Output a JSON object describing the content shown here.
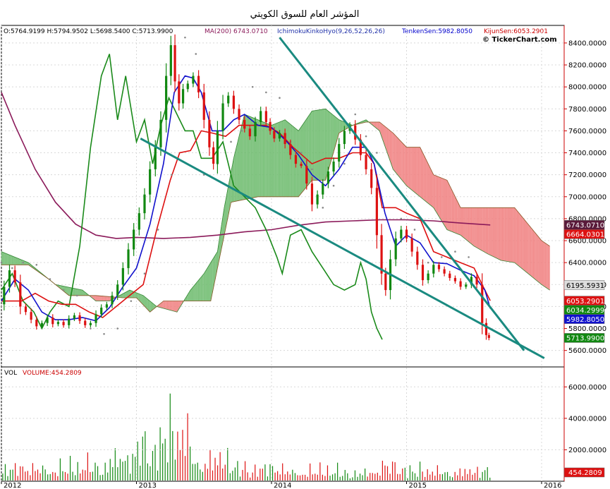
{
  "chart_data": {
    "type": "candlestick",
    "title": "المؤشر العام للسوق الكويتي",
    "watermark": "© TickerChart.com",
    "legend_ohlc": "O:5764.9199 H:5794.9502 L:5698.5400 C:5713.9900",
    "indicators": [
      {
        "label": "MA(200) 6743.0710",
        "color": "#8b1a5a"
      },
      {
        "label": "IchimokuKinkoHyo(9,26,52,26,26)",
        "color": "#2233aa"
      },
      {
        "label": "TenkenSen:5982.8050",
        "color": "#0000cc"
      },
      {
        "label": "KijunSen:6053.2901",
        "color": "#cc0000"
      }
    ],
    "price_axis": {
      "min": 5450,
      "max": 8560,
      "ticks": [
        5600,
        5800,
        6000,
        6200,
        6400,
        6600,
        6800,
        7000,
        7200,
        7400,
        7600,
        7800,
        8000,
        8200,
        8400
      ]
    },
    "time_axis": {
      "labels": [
        {
          "text": "2012",
          "t": 0
        },
        {
          "text": "2013",
          "t": 1
        },
        {
          "text": "2014",
          "t": 2
        },
        {
          "text": "2015",
          "t": 3
        },
        {
          "text": "2016",
          "t": 4
        }
      ]
    },
    "price_badges": [
      {
        "value": "6743.0710",
        "y": 6743.07,
        "bg": "#5a1a3a",
        "fg": "#ffffff"
      },
      {
        "value": "6664.0301",
        "y": 6664.03,
        "bg": "#dd1111",
        "fg": "#ffffff"
      },
      {
        "value": "6195.5931",
        "y": 6195.59,
        "bg": "#dddddd",
        "fg": "#000000"
      },
      {
        "value": "6053.2901",
        "y": 6053.29,
        "bg": "#dd1111",
        "fg": "#ffffff"
      },
      {
        "value": "6034.2999",
        "y": 6034.3,
        "bg": "#118811",
        "fg": "#ffffff"
      },
      {
        "value": "5982.8050",
        "y": 5982.81,
        "bg": "#1111cc",
        "fg": "#ffffff"
      },
      {
        "value": "5713.9900",
        "y": 5713.99,
        "bg": "#118811",
        "fg": "#ffffff"
      }
    ],
    "close": [
      [
        0.0,
        6020
      ],
      [
        0.04,
        6180
      ],
      [
        0.08,
        6330
      ],
      [
        0.12,
        6220
      ],
      [
        0.16,
        6000
      ],
      [
        0.2,
        5950
      ],
      [
        0.24,
        5880
      ],
      [
        0.28,
        5820
      ],
      [
        0.32,
        5850
      ],
      [
        0.36,
        5900
      ],
      [
        0.4,
        5840
      ],
      [
        0.44,
        5860
      ],
      [
        0.48,
        5830
      ],
      [
        0.52,
        5890
      ],
      [
        0.56,
        5920
      ],
      [
        0.6,
        5870
      ],
      [
        0.64,
        5830
      ],
      [
        0.68,
        5850
      ],
      [
        0.72,
        5930
      ],
      [
        0.76,
        5990
      ],
      [
        0.8,
        6020
      ],
      [
        0.84,
        6100
      ],
      [
        0.88,
        6200
      ],
      [
        0.92,
        6350
      ],
      [
        0.96,
        6520
      ],
      [
        1.0,
        6700
      ],
      [
        1.04,
        6850
      ],
      [
        1.08,
        7020
      ],
      [
        1.12,
        7250
      ],
      [
        1.16,
        7450
      ],
      [
        1.2,
        7700
      ],
      [
        1.24,
        8100
      ],
      [
        1.27,
        8380
      ],
      [
        1.3,
        8050
      ],
      [
        1.33,
        7850
      ],
      [
        1.36,
        7980
      ],
      [
        1.4,
        8030
      ],
      [
        1.44,
        8100
      ],
      [
        1.48,
        7950
      ],
      [
        1.52,
        7700
      ],
      [
        1.56,
        7450
      ],
      [
        1.58,
        7300
      ],
      [
        1.62,
        7600
      ],
      [
        1.66,
        7850
      ],
      [
        1.7,
        7920
      ],
      [
        1.74,
        7800
      ],
      [
        1.78,
        7700
      ],
      [
        1.82,
        7620
      ],
      [
        1.86,
        7550
      ],
      [
        1.9,
        7680
      ],
      [
        1.94,
        7780
      ],
      [
        1.98,
        7680
      ],
      [
        2.0,
        7600
      ],
      [
        2.04,
        7530
      ],
      [
        2.08,
        7580
      ],
      [
        2.12,
        7480
      ],
      [
        2.16,
        7380
      ],
      [
        2.2,
        7300
      ],
      [
        2.24,
        7280
      ],
      [
        2.28,
        7120
      ],
      [
        2.32,
        6930
      ],
      [
        2.36,
        7020
      ],
      [
        2.4,
        7120
      ],
      [
        2.44,
        7230
      ],
      [
        2.48,
        7320
      ],
      [
        2.52,
        7480
      ],
      [
        2.56,
        7600
      ],
      [
        2.6,
        7650
      ],
      [
        2.64,
        7520
      ],
      [
        2.68,
        7380
      ],
      [
        2.72,
        7250
      ],
      [
        2.76,
        7080
      ],
      [
        2.8,
        6650
      ],
      [
        2.83,
        6300
      ],
      [
        2.86,
        6150
      ],
      [
        2.9,
        6430
      ],
      [
        2.94,
        6620
      ],
      [
        2.98,
        6700
      ],
      [
        3.02,
        6620
      ],
      [
        3.06,
        6500
      ],
      [
        3.1,
        6380
      ],
      [
        3.14,
        6240
      ],
      [
        3.18,
        6300
      ],
      [
        3.22,
        6380
      ],
      [
        3.26,
        6340
      ],
      [
        3.3,
        6300
      ],
      [
        3.34,
        6260
      ],
      [
        3.38,
        6230
      ],
      [
        3.42,
        6180
      ],
      [
        3.46,
        6200
      ],
      [
        3.5,
        6270
      ],
      [
        3.54,
        6200
      ],
      [
        3.58,
        5850
      ],
      [
        3.6,
        5740
      ],
      [
        3.62,
        5713.99
      ]
    ],
    "ma200": [
      [
        0.0,
        7950
      ],
      [
        0.1,
        7650
      ],
      [
        0.25,
        7250
      ],
      [
        0.4,
        6950
      ],
      [
        0.55,
        6750
      ],
      [
        0.7,
        6650
      ],
      [
        0.85,
        6620
      ],
      [
        1.0,
        6630
      ],
      [
        1.2,
        6620
      ],
      [
        1.4,
        6630
      ],
      [
        1.6,
        6650
      ],
      [
        1.8,
        6680
      ],
      [
        2.0,
        6700
      ],
      [
        2.2,
        6740
      ],
      [
        2.4,
        6770
      ],
      [
        2.6,
        6780
      ],
      [
        2.8,
        6790
      ],
      [
        3.0,
        6790
      ],
      [
        3.2,
        6780
      ],
      [
        3.4,
        6760
      ],
      [
        3.62,
        6743
      ]
    ],
    "tenkan": [
      [
        0.0,
        6050
      ],
      [
        0.1,
        6250
      ],
      [
        0.2,
        6150
      ],
      [
        0.3,
        5950
      ],
      [
        0.4,
        5880
      ],
      [
        0.5,
        5880
      ],
      [
        0.6,
        5900
      ],
      [
        0.7,
        5870
      ],
      [
        0.8,
        5990
      ],
      [
        0.9,
        6180
      ],
      [
        1.0,
        6350
      ],
      [
        1.1,
        6750
      ],
      [
        1.2,
        7300
      ],
      [
        1.28,
        7950
      ],
      [
        1.36,
        8100
      ],
      [
        1.42,
        8080
      ],
      [
        1.48,
        7950
      ],
      [
        1.56,
        7600
      ],
      [
        1.64,
        7600
      ],
      [
        1.72,
        7700
      ],
      [
        1.8,
        7750
      ],
      [
        1.9,
        7650
      ],
      [
        2.0,
        7630
      ],
      [
        2.1,
        7520
      ],
      [
        2.2,
        7380
      ],
      [
        2.3,
        7200
      ],
      [
        2.4,
        7100
      ],
      [
        2.5,
        7250
      ],
      [
        2.6,
        7450
      ],
      [
        2.7,
        7450
      ],
      [
        2.76,
        7300
      ],
      [
        2.84,
        6850
      ],
      [
        2.92,
        6550
      ],
      [
        3.0,
        6650
      ],
      [
        3.1,
        6580
      ],
      [
        3.2,
        6400
      ],
      [
        3.3,
        6390
      ],
      [
        3.4,
        6330
      ],
      [
        3.5,
        6280
      ],
      [
        3.58,
        6150
      ],
      [
        3.62,
        5982.8
      ]
    ],
    "kijun": [
      [
        0.0,
        6050
      ],
      [
        0.15,
        6050
      ],
      [
        0.25,
        6120
      ],
      [
        0.35,
        6050
      ],
      [
        0.45,
        6020
      ],
      [
        0.55,
        6020
      ],
      [
        0.65,
        5950
      ],
      [
        0.75,
        5900
      ],
      [
        0.85,
        6000
      ],
      [
        0.95,
        6100
      ],
      [
        1.05,
        6200
      ],
      [
        1.15,
        6700
      ],
      [
        1.25,
        7150
      ],
      [
        1.32,
        7400
      ],
      [
        1.4,
        7420
      ],
      [
        1.48,
        7600
      ],
      [
        1.56,
        7580
      ],
      [
        1.66,
        7550
      ],
      [
        1.76,
        7650
      ],
      [
        1.86,
        7650
      ],
      [
        1.96,
        7650
      ],
      [
        2.06,
        7580
      ],
      [
        2.16,
        7450
      ],
      [
        2.3,
        7300
      ],
      [
        2.4,
        7350
      ],
      [
        2.5,
        7350
      ],
      [
        2.6,
        7400
      ],
      [
        2.7,
        7400
      ],
      [
        2.76,
        7300
      ],
      [
        2.82,
        6900
      ],
      [
        2.92,
        6900
      ],
      [
        3.0,
        6850
      ],
      [
        3.1,
        6800
      ],
      [
        3.2,
        6500
      ],
      [
        3.3,
        6450
      ],
      [
        3.4,
        6400
      ],
      [
        3.5,
        6350
      ],
      [
        3.56,
        6200
      ],
      [
        3.62,
        6053.3
      ]
    ],
    "chikou": [
      [
        0.0,
        6150
      ],
      [
        0.08,
        6300
      ],
      [
        0.16,
        6050
      ],
      [
        0.24,
        5950
      ],
      [
        0.3,
        5800
      ],
      [
        0.36,
        5950
      ],
      [
        0.42,
        6050
      ],
      [
        0.5,
        6000
      ],
      [
        0.58,
        6550
      ],
      [
        0.66,
        7450
      ],
      [
        0.74,
        8100
      ],
      [
        0.8,
        8300
      ],
      [
        0.86,
        7700
      ],
      [
        0.92,
        8100
      ],
      [
        1.0,
        7500
      ],
      [
        1.06,
        7700
      ],
      [
        1.12,
        7300
      ],
      [
        1.18,
        7650
      ],
      [
        1.24,
        7900
      ],
      [
        1.3,
        7750
      ],
      [
        1.36,
        7600
      ],
      [
        1.42,
        7600
      ],
      [
        1.48,
        7350
      ],
      [
        1.56,
        7350
      ],
      [
        1.64,
        7500
      ],
      [
        1.72,
        7100
      ],
      [
        1.8,
        7000
      ],
      [
        1.88,
        6900
      ],
      [
        1.96,
        6700
      ],
      [
        2.04,
        6450
      ],
      [
        2.08,
        6300
      ],
      [
        2.14,
        6650
      ],
      [
        2.22,
        6700
      ],
      [
        2.3,
        6500
      ],
      [
        2.38,
        6350
      ],
      [
        2.46,
        6200
      ],
      [
        2.54,
        6150
      ],
      [
        2.62,
        6200
      ],
      [
        2.66,
        6400
      ],
      [
        2.7,
        6250
      ],
      [
        2.74,
        5950
      ],
      [
        2.78,
        5800
      ],
      [
        2.82,
        5700
      ]
    ],
    "parabolic_sar": [
      [
        0.0,
        6400
      ],
      [
        0.08,
        6350
      ],
      [
        0.16,
        6400
      ],
      [
        0.26,
        6380
      ],
      [
        0.36,
        6250
      ],
      [
        0.46,
        6150
      ],
      [
        0.56,
        6100
      ],
      [
        0.66,
        5800
      ],
      [
        0.76,
        5750
      ],
      [
        0.86,
        5800
      ],
      [
        0.96,
        6050
      ],
      [
        1.06,
        6300
      ],
      [
        1.16,
        6700
      ],
      [
        1.26,
        7200
      ],
      [
        1.36,
        8450
      ],
      [
        1.44,
        8300
      ],
      [
        1.5,
        7200
      ],
      [
        1.6,
        7300
      ],
      [
        1.7,
        7500
      ],
      [
        1.78,
        7600
      ],
      [
        1.86,
        8000
      ],
      [
        1.96,
        7950
      ],
      [
        2.06,
        7900
      ],
      [
        2.14,
        7500
      ],
      [
        2.22,
        7400
      ],
      [
        2.3,
        7250
      ],
      [
        2.38,
        6900
      ],
      [
        2.46,
        7100
      ],
      [
        2.54,
        7300
      ],
      [
        2.62,
        7750
      ],
      [
        2.7,
        7550
      ],
      [
        2.78,
        7400
      ],
      [
        2.86,
        6300
      ],
      [
        2.96,
        6800
      ],
      [
        3.06,
        6700
      ],
      [
        3.16,
        6400
      ],
      [
        3.26,
        6450
      ],
      [
        3.36,
        6500
      ],
      [
        3.46,
        6450
      ],
      [
        3.56,
        6150
      ]
    ],
    "senkou_a": [
      [
        0.0,
        6500
      ],
      [
        0.2,
        6400
      ],
      [
        0.4,
        6200
      ],
      [
        0.6,
        6150
      ],
      [
        0.7,
        6050
      ],
      [
        0.8,
        6050
      ],
      [
        0.95,
        6150
      ],
      [
        1.05,
        6100
      ],
      [
        1.15,
        6000
      ],
      [
        1.3,
        5950
      ],
      [
        1.4,
        6150
      ],
      [
        1.5,
        6300
      ],
      [
        1.6,
        6500
      ],
      [
        1.65,
        6900
      ],
      [
        1.72,
        7350
      ],
      [
        1.8,
        7750
      ],
      [
        1.9,
        7700
      ],
      [
        2.0,
        7650
      ],
      [
        2.1,
        7700
      ],
      [
        2.2,
        7600
      ],
      [
        2.3,
        7780
      ],
      [
        2.4,
        7800
      ],
      [
        2.5,
        7700
      ],
      [
        2.6,
        7650
      ],
      [
        2.7,
        7700
      ],
      [
        2.8,
        7600
      ],
      [
        2.9,
        7250
      ],
      [
        3.0,
        7100
      ],
      [
        3.1,
        7000
      ],
      [
        3.2,
        6900
      ],
      [
        3.3,
        6700
      ],
      [
        3.4,
        6650
      ],
      [
        3.5,
        6550
      ],
      [
        3.6,
        6480
      ],
      [
        3.7,
        6420
      ],
      [
        3.8,
        6400
      ],
      [
        3.9,
        6300
      ],
      [
        4.0,
        6200
      ],
      [
        4.06,
        6150
      ]
    ],
    "senkou_b": [
      [
        0.0,
        6380
      ],
      [
        0.2,
        6380
      ],
      [
        0.35,
        6250
      ],
      [
        0.5,
        6100
      ],
      [
        0.7,
        6100
      ],
      [
        0.9,
        6080
      ],
      [
        1.0,
        6080
      ],
      [
        1.1,
        5950
      ],
      [
        1.2,
        6050
      ],
      [
        1.3,
        6050
      ],
      [
        1.4,
        6050
      ],
      [
        1.55,
        6050
      ],
      [
        1.7,
        6950
      ],
      [
        1.9,
        7000
      ],
      [
        2.05,
        7000
      ],
      [
        2.2,
        7000
      ],
      [
        2.3,
        7150
      ],
      [
        2.4,
        7150
      ],
      [
        2.5,
        7580
      ],
      [
        2.6,
        7650
      ],
      [
        2.7,
        7680
      ],
      [
        2.8,
        7680
      ],
      [
        2.9,
        7580
      ],
      [
        3.0,
        7450
      ],
      [
        3.1,
        7450
      ],
      [
        3.2,
        7200
      ],
      [
        3.3,
        7150
      ],
      [
        3.4,
        6900
      ],
      [
        3.5,
        6900
      ],
      [
        3.6,
        6900
      ],
      [
        3.7,
        6900
      ],
      [
        3.8,
        6900
      ],
      [
        3.9,
        6750
      ],
      [
        4.0,
        6600
      ],
      [
        4.06,
        6550
      ]
    ],
    "trendlines": [
      {
        "p1": [
          1.03,
          7530
        ],
        "p2": [
          4.02,
          5530
        ],
        "color": "#1a8a80"
      },
      {
        "p1": [
          2.06,
          8450
        ],
        "p2": [
          3.87,
          5600
        ],
        "color": "#1a8a80"
      }
    ],
    "volume_panel": {
      "label_vol": "VOL",
      "label_volume": "VOLUME:454.2809",
      "axis_min": 0,
      "axis_max": 7000,
      "ticks": [
        2000,
        4000,
        6000
      ],
      "badge": "454.2809",
      "segments": [
        {
          "t0": 0.0,
          "t1": 0.6,
          "level": 900
        },
        {
          "t0": 0.6,
          "t1": 0.8,
          "level": 1100
        },
        {
          "t0": 0.8,
          "t1": 1.0,
          "level": 1600
        },
        {
          "t0": 1.0,
          "t1": 1.2,
          "level": 2600
        },
        {
          "t0": 1.2,
          "t1": 1.4,
          "level": 3300
        },
        {
          "t0": 1.4,
          "t1": 1.7,
          "level": 1500
        },
        {
          "t0": 1.7,
          "t1": 2.1,
          "level": 900
        },
        {
          "t0": 2.1,
          "t1": 2.5,
          "level": 700
        },
        {
          "t0": 2.5,
          "t1": 2.8,
          "level": 600
        },
        {
          "t0": 2.8,
          "t1": 3.0,
          "level": 1100
        },
        {
          "t0": 3.0,
          "t1": 3.62,
          "level": 700
        }
      ]
    }
  }
}
